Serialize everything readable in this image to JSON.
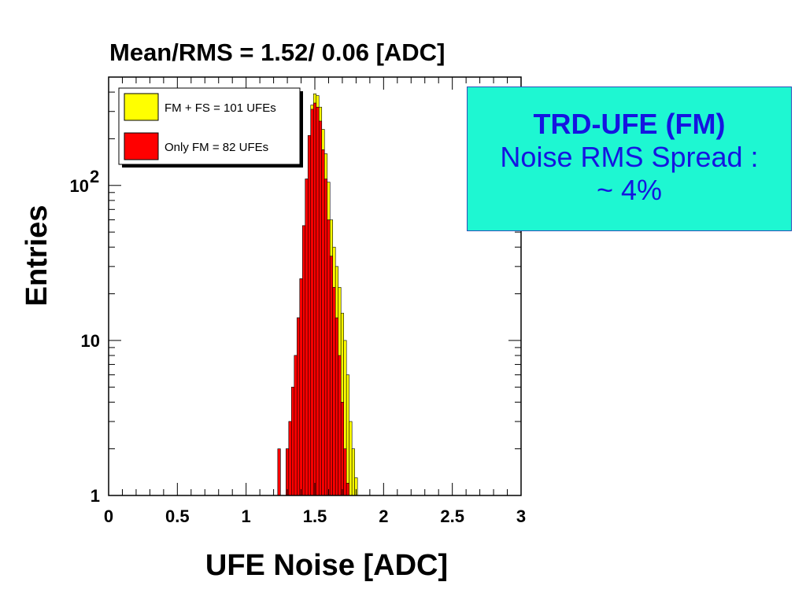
{
  "chart_data": {
    "type": "histogram",
    "title": "Mean/RMS =   1.52/  0.06 [ADC]",
    "xlabel": "UFE Noise [ADC]",
    "ylabel": "Entries",
    "xlim": [
      0,
      3
    ],
    "ylim": [
      1,
      500
    ],
    "yscale": "log",
    "x_ticks": [
      "0",
      "0.5",
      "1",
      "1.5",
      "2",
      "2.5",
      "3"
    ],
    "y_ticks": [
      {
        "value": 1,
        "label": "1"
      },
      {
        "value": 10,
        "label": "10"
      },
      {
        "value": 100,
        "label": "10",
        "exp": "2"
      }
    ],
    "legend_position": "top-left",
    "series": [
      {
        "name": "FM + FS = 101 UFEs",
        "color": "#ffff00",
        "x": [
          1.3,
          1.32,
          1.34,
          1.36,
          1.38,
          1.4,
          1.42,
          1.44,
          1.46,
          1.48,
          1.5,
          1.52,
          1.54,
          1.56,
          1.58,
          1.6,
          1.62,
          1.64,
          1.66,
          1.68,
          1.7,
          1.72,
          1.74,
          1.76,
          1.78,
          1.8
        ],
        "values": [
          2,
          3,
          5,
          8,
          14,
          25,
          55,
          110,
          210,
          330,
          390,
          380,
          320,
          230,
          160,
          105,
          60,
          40,
          30,
          22,
          15,
          10,
          6,
          3,
          2,
          1.3
        ]
      },
      {
        "name": "Only FM =  82 UFEs",
        "color": "#ff0000",
        "x": [
          1.24,
          1.26,
          1.28,
          1.3,
          1.32,
          1.34,
          1.36,
          1.38,
          1.4,
          1.42,
          1.44,
          1.46,
          1.48,
          1.5,
          1.52,
          1.54,
          1.56,
          1.58,
          1.6,
          1.62,
          1.64,
          1.66,
          1.68,
          1.7,
          1.72,
          1.74
        ],
        "values": [
          2,
          1,
          1,
          2,
          3,
          5,
          8,
          14,
          25,
          55,
          110,
          210,
          310,
          340,
          320,
          260,
          170,
          110,
          60,
          35,
          22,
          14,
          8,
          4,
          2,
          1.2
        ]
      }
    ]
  },
  "annotation": {
    "title": "TRD-UFE (FM)",
    "line1": "Noise RMS Spread :",
    "line2": "~ 4%"
  }
}
